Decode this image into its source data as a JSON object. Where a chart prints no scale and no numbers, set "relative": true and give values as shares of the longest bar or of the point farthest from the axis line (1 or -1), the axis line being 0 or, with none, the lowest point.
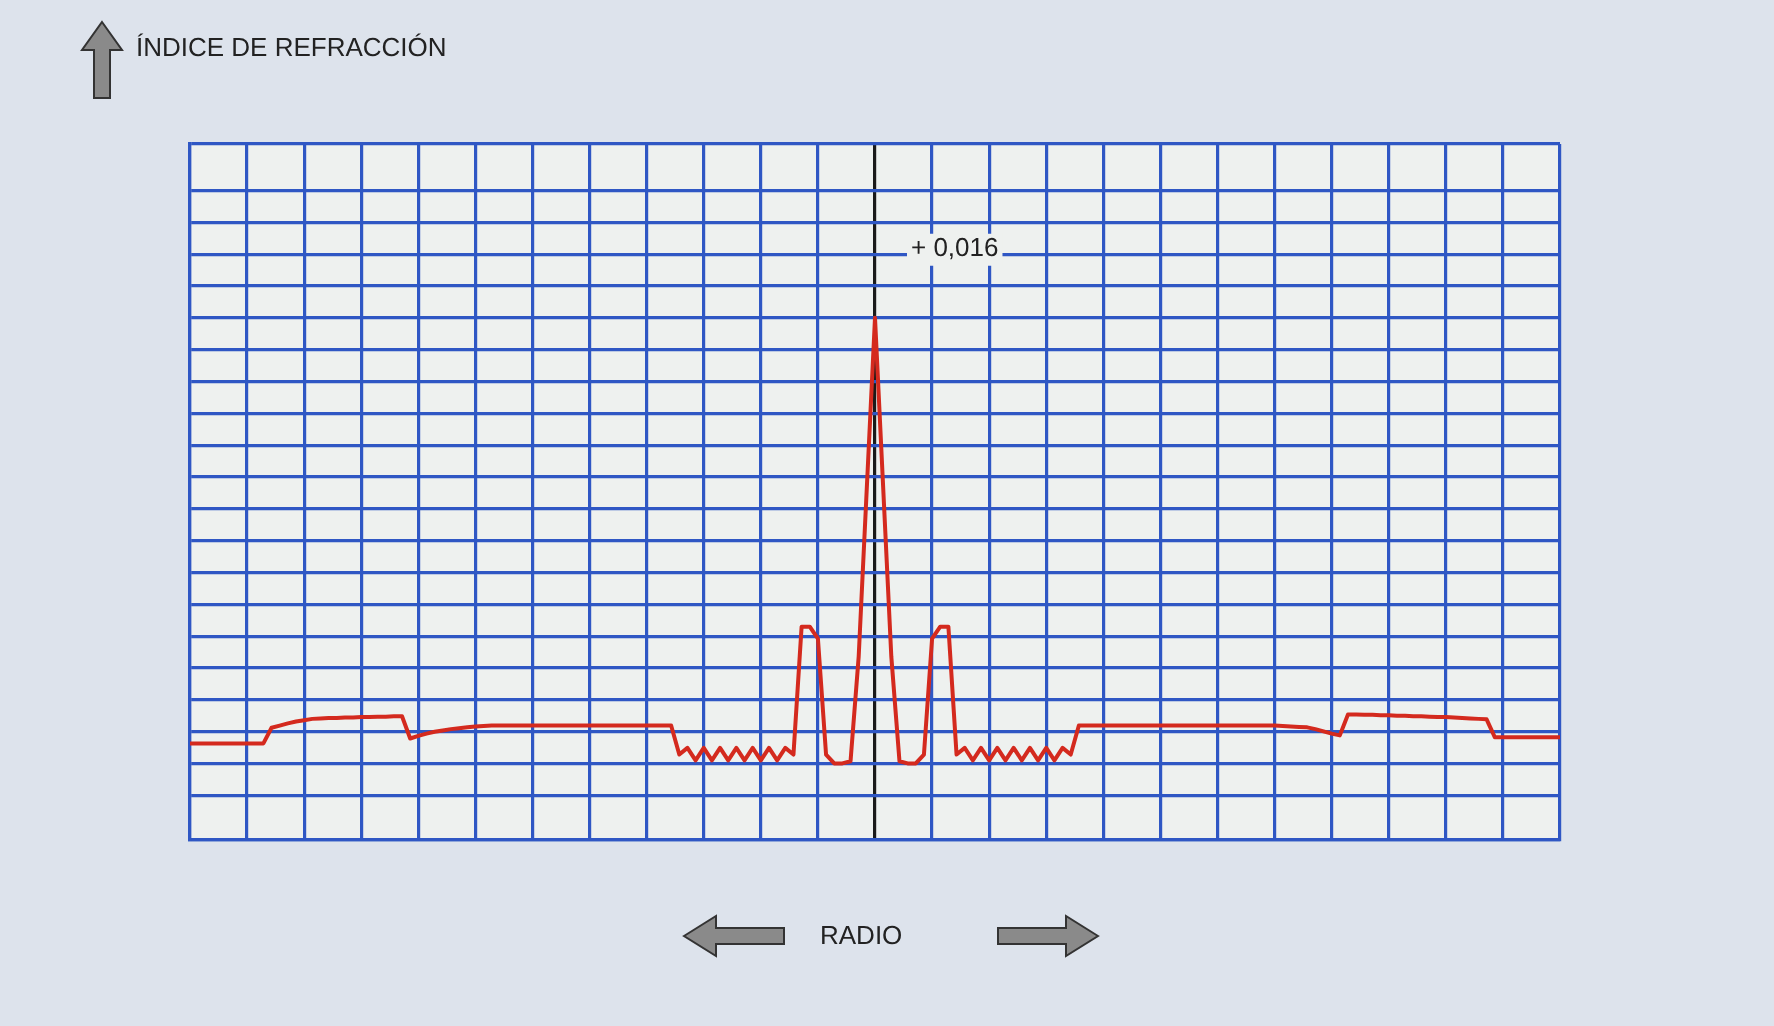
{
  "chart_data": {
    "type": "line",
    "relative": true,
    "categories": [
      null,
      null,
      null,
      null,
      null,
      null,
      null,
      null,
      null,
      null,
      null,
      null,
      null,
      null,
      null,
      null,
      null,
      null,
      null,
      null,
      null,
      null,
      null,
      null,
      null,
      null,
      null,
      null,
      null,
      null,
      null,
      null,
      null,
      null,
      null,
      null,
      null,
      null,
      null,
      null,
      null,
      null,
      null,
      null,
      null,
      null,
      null,
      null,
      null,
      null,
      null,
      null,
      null,
      null,
      null,
      null,
      null,
      null,
      null,
      null,
      null,
      null,
      null,
      null,
      null,
      null,
      null,
      null,
      null,
      null,
      null,
      null,
      null,
      null,
      null,
      null,
      null,
      null,
      null,
      null,
      null,
      null,
      null,
      null,
      null,
      null,
      null,
      null,
      null,
      null,
      null,
      null,
      null,
      null,
      null,
      null,
      null,
      null,
      null,
      null,
      null,
      null,
      null,
      null,
      null,
      null,
      null,
      null,
      null,
      null,
      null,
      null,
      null,
      null,
      null,
      null,
      null,
      null,
      null,
      null,
      null,
      null,
      null,
      null,
      null,
      null,
      null,
      null,
      null,
      null,
      null,
      null,
      null,
      null,
      null,
      null,
      null,
      null,
      null,
      null,
      null,
      null,
      null,
      null,
      null,
      null,
      null,
      null,
      null,
      null,
      null,
      null,
      null,
      null,
      null,
      null,
      null,
      null,
      null,
      null,
      null,
      null,
      null,
      null,
      null,
      null,
      null,
      null,
      null
    ],
    "grid": true,
    "legend": false,
    "marker": "none",
    "line_style": "solid",
    "series": [
      {
        "color": "#d42a1e",
        "values": [
          0.045,
          0.045,
          0.045,
          0.045,
          0.045,
          0.045,
          0.045,
          0.045,
          0.045,
          0.045,
          0.08,
          0.085,
          0.09,
          0.094,
          0.097,
          0.1,
          0.101,
          0.102,
          0.102,
          0.103,
          0.103,
          0.104,
          0.104,
          0.105,
          0.105,
          0.106,
          0.106,
          0.056,
          0.062,
          0.067,
          0.071,
          0.074,
          0.077,
          0.079,
          0.081,
          0.083,
          0.084,
          0.085,
          0.085,
          0.085,
          0.085,
          0.085,
          0.085,
          0.085,
          0.085,
          0.085,
          0.085,
          0.085,
          0.085,
          0.085,
          0.085,
          0.085,
          0.085,
          0.085,
          0.085,
          0.085,
          0.085,
          0.085,
          0.085,
          0.085,
          0.02,
          0.035,
          0.007,
          0.035,
          0.007,
          0.035,
          0.007,
          0.035,
          0.007,
          0.035,
          0.007,
          0.035,
          0.007,
          0.035,
          0.02,
          0.307,
          0.307,
          0.28,
          0.02,
          0,
          0,
          0.005,
          0.24,
          0.62,
          1,
          0.62,
          0.24,
          0.005,
          0,
          0,
          0.02,
          0.28,
          0.307,
          0.307,
          0.02,
          0.035,
          0.007,
          0.035,
          0.007,
          0.035,
          0.007,
          0.035,
          0.007,
          0.035,
          0.007,
          0.035,
          0.007,
          0.035,
          0.02,
          0.085,
          0.085,
          0.085,
          0.085,
          0.085,
          0.085,
          0.085,
          0.085,
          0.085,
          0.085,
          0.085,
          0.085,
          0.085,
          0.085,
          0.085,
          0.085,
          0.085,
          0.085,
          0.085,
          0.085,
          0.085,
          0.085,
          0.085,
          0.085,
          0.085,
          0.084,
          0.083,
          0.082,
          0.081,
          0.077,
          0.072,
          0.067,
          0.063,
          0.11,
          0.11,
          0.109,
          0.109,
          0.108,
          0.108,
          0.107,
          0.107,
          0.106,
          0.106,
          0.105,
          0.104,
          0.104,
          0.103,
          0.102,
          0.101,
          0.1,
          0.099,
          0.059,
          0.059,
          0.059,
          0.059,
          0.059,
          0.059,
          0.059,
          0.059,
          0.059
        ]
      }
    ],
    "annotations": [
      "ÍNDICE DE REFRACCIÓN",
      "+ 0,016",
      "RADIO"
    ]
  }
}
